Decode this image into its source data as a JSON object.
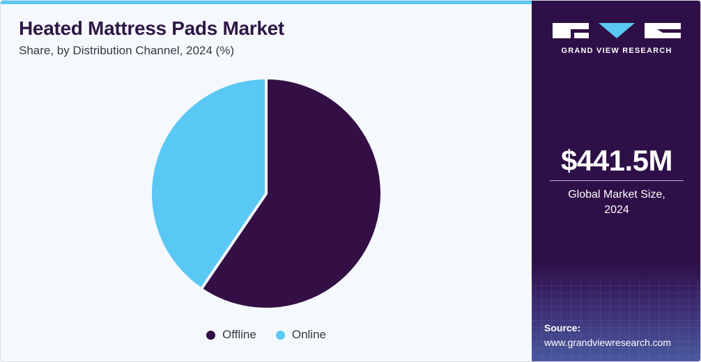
{
  "header": {
    "title": "Heated Mattress Pads Market",
    "subtitle": "Share, by Distribution Channel, 2024 (%)"
  },
  "chart_data": {
    "type": "pie",
    "title": "Heated Mattress Pads Market",
    "subtitle": "Share, by Distribution Channel, 2024 (%)",
    "categories": [
      "Offline",
      "Online"
    ],
    "values": [
      59.5,
      40.5
    ],
    "colors": [
      "#330f45",
      "#5ac8f5"
    ],
    "legend_position": "bottom"
  },
  "sidebar": {
    "brand": "GRAND VIEW RESEARCH",
    "market_value": "$441.5M",
    "market_label_line1": "Global Market Size,",
    "market_label_line2": "2024",
    "source_label": "Source:",
    "source_url": "www.grandviewresearch.com"
  }
}
